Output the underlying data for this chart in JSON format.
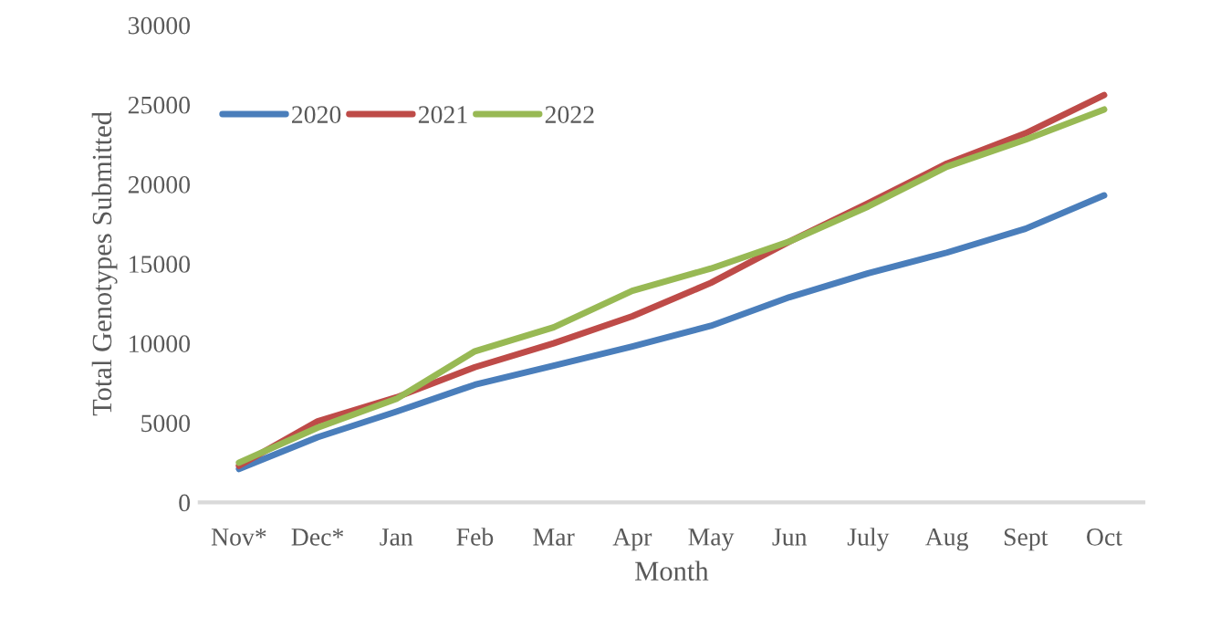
{
  "chart_data": {
    "type": "line",
    "xlabel": "Month",
    "ylabel": "Total Genotypes Submitted",
    "categories": [
      "Nov*",
      "Dec*",
      "Jan",
      "Feb",
      "Mar",
      "Apr",
      "May",
      "Jun",
      "July",
      "Aug",
      "Sept",
      "Oct"
    ],
    "series": [
      {
        "name": "2020",
        "color": "#4a7ebb",
        "values": [
          2100,
          4100,
          5700,
          7400,
          8600,
          9800,
          11100,
          12900,
          14400,
          15700,
          17200,
          19300
        ]
      },
      {
        "name": "2021",
        "color": "#be4b48",
        "values": [
          2300,
          5100,
          6600,
          8500,
          10000,
          11700,
          13800,
          16400,
          18800,
          21300,
          23200,
          25600
        ]
      },
      {
        "name": "2022",
        "color": "#98b954",
        "values": [
          2500,
          4700,
          6500,
          9500,
          11000,
          13300,
          14700,
          16400,
          18600,
          21100,
          22800,
          24700
        ]
      }
    ],
    "ylim": [
      0,
      30000
    ],
    "yticks": [
      0,
      5000,
      10000,
      15000,
      20000,
      25000,
      30000
    ],
    "grid": false,
    "legend": "top left",
    "marker": "none",
    "line_style": "solid"
  }
}
